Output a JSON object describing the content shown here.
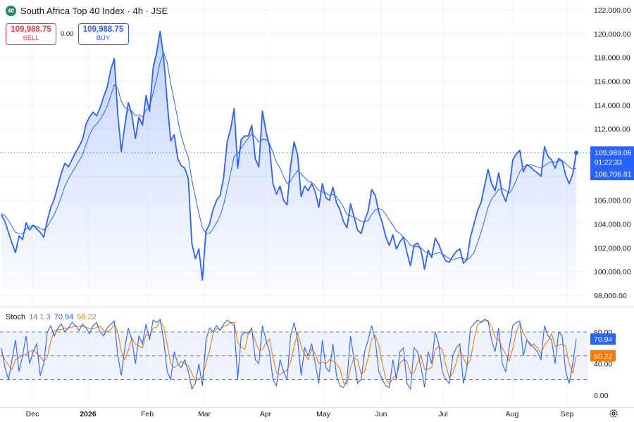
{
  "header": {
    "logo_text": "40",
    "title": "South Africa Top 40 Index · 4h · JSE"
  },
  "trade": {
    "sell_price": "109,988.75",
    "sell_label": "SELL",
    "spread": "0.00",
    "buy_price": "109,988.75",
    "buy_label": "BUY"
  },
  "price_labels": {
    "last_price": "109,989.06",
    "countdown": "01:22:33",
    "ma_value": "108,706.81",
    "last_color": "#2962ff"
  },
  "stoch_header": {
    "name": "Stoch",
    "params": "14 1 3",
    "k_value": "70.94",
    "d_value": "50.22"
  },
  "icons": {
    "settings": "gear-icon"
  },
  "chart_data": [
    {
      "type": "area",
      "series": [
        {
          "name": "",
          "color": "#2962ff",
          "values": [
            104800,
            104200,
            103300,
            102400,
            101600,
            103000,
            102700,
            104100,
            103500,
            103900,
            103600,
            103300,
            102900,
            104300,
            105400,
            106100,
            107200,
            108300,
            109100,
            108800,
            109400,
            110000,
            110500,
            111100,
            112400,
            113000,
            113400,
            113100,
            113800,
            114700,
            115500,
            117000,
            117900,
            113200,
            110100,
            112300,
            114200,
            113200,
            111200,
            113000,
            112300,
            114800,
            113500,
            117100,
            118400,
            120200,
            118000,
            114300,
            111000,
            111500,
            109500,
            108900,
            108700,
            107800,
            102400,
            101100,
            101900,
            99300,
            103400,
            104000,
            105200,
            106000,
            106400,
            107900,
            110900,
            112000,
            113700,
            108700,
            111100,
            111400,
            111400,
            112300,
            109500,
            108800,
            113500,
            111800,
            110500,
            107400,
            106500,
            107200,
            106000,
            105600,
            108900,
            110900,
            109800,
            106300,
            107200,
            106800,
            107400,
            106700,
            105400,
            107400,
            106200,
            106000,
            107100,
            105800,
            105200,
            104200,
            103700,
            105700,
            104600,
            103500,
            103200,
            104300,
            105100,
            106900,
            106400,
            105000,
            104100,
            102900,
            102200,
            103100,
            101900,
            102500,
            102900,
            101600,
            100500,
            102200,
            102400,
            101800,
            100200,
            101800,
            101200,
            102800,
            102300,
            101500,
            100900,
            100800,
            101300,
            101700,
            101900,
            100700,
            101000,
            102900,
            104000,
            105100,
            105800,
            107200,
            108600,
            107400,
            106800,
            108300,
            106600,
            105900,
            107000,
            109400,
            109900,
            110200,
            108400,
            109000,
            108800,
            108500,
            108300,
            108000,
            110500,
            109700,
            109400,
            108700,
            109500,
            109300,
            108100,
            107400,
            108200,
            109989
          ]
        },
        {
          "name": "",
          "color": "#2962ff",
          "values": [
            104900,
            104700,
            104300,
            103800,
            103300,
            103200,
            103200,
            103600,
            103800,
            103900,
            103800,
            103600,
            103500,
            103800,
            104300,
            104800,
            105500,
            106300,
            107200,
            107800,
            108300,
            108800,
            109300,
            109800,
            110700,
            111500,
            112100,
            112400,
            112800,
            113300,
            113900,
            114800,
            115700,
            115400,
            114300,
            113800,
            113600,
            113500,
            113100,
            113200,
            113000,
            113600,
            113800,
            115000,
            116200,
            117600,
            118400,
            117600,
            115800,
            114400,
            112800,
            111400,
            110400,
            109600,
            107700,
            106300,
            104900,
            103700,
            103200,
            103200,
            103600,
            104100,
            104700,
            105600,
            106900,
            108300,
            109700,
            109900,
            110400,
            110800,
            111200,
            111600,
            111300,
            110900,
            111100,
            111100,
            110800,
            110000,
            109200,
            108700,
            108000,
            107400,
            107600,
            108100,
            108500,
            108200,
            107900,
            107600,
            107500,
            107200,
            106800,
            106700,
            106600,
            106400,
            106500,
            106300,
            105900,
            105400,
            104800,
            104700,
            104600,
            104400,
            104200,
            104200,
            104300,
            104800,
            105200,
            105300,
            105200,
            104800,
            104300,
            103900,
            103400,
            103200,
            102900,
            102600,
            102200,
            102100,
            102100,
            102000,
            101700,
            101500,
            101400,
            101500,
            101600,
            101500,
            101300,
            101100,
            101000,
            101100,
            101200,
            101100,
            101000,
            101200,
            101600,
            102400,
            103300,
            104300,
            105400,
            106100,
            106500,
            106900,
            107000,
            106800,
            106600,
            107000,
            107700,
            108400,
            108800,
            108900,
            109000,
            108900,
            108800,
            108700,
            108900,
            109100,
            109200,
            109200,
            109300,
            109300,
            109100,
            108800,
            108600,
            108706.81
          ]
        }
      ],
      "ylim": [
        97500,
        122500
      ],
      "y_ticks": [
        "98,000.00",
        "100,000.00",
        "102,000.00",
        "104,000.00",
        "106,000.00",
        "108,000.00",
        "110,000.00",
        "112,000.00",
        "114,000.00",
        "116,000.00",
        "118,000.00",
        "120,000.00",
        "122,000.00"
      ],
      "x_ticks": [
        "Dec",
        "2026",
        "Feb",
        "Mar",
        "Apr",
        "May",
        "Jun",
        "Jul",
        "Aug",
        "Sep"
      ],
      "grid": true
    },
    {
      "type": "line",
      "series": [
        {
          "name": "",
          "color": "#2962ff",
          "values": [
            60,
            35,
            20,
            45,
            70,
            30,
            50,
            75,
            40,
            55,
            65,
            25,
            40,
            80,
            88,
            75,
            85,
            90,
            80,
            85,
            92,
            88,
            82,
            90,
            85,
            78,
            88,
            92,
            80,
            75,
            85,
            90,
            94,
            50,
            25,
            60,
            85,
            70,
            40,
            75,
            65,
            90,
            70,
            95,
            92,
            96,
            70,
            30,
            20,
            55,
            40,
            35,
            45,
            30,
            8,
            15,
            40,
            12,
            70,
            85,
            80,
            88,
            82,
            90,
            95,
            92,
            88,
            20,
            75,
            80,
            78,
            85,
            45,
            40,
            88,
            70,
            55,
            20,
            12,
            45,
            30,
            20,
            75,
            92,
            70,
            25,
            60,
            50,
            65,
            40,
            15,
            70,
            35,
            30,
            65,
            25,
            12,
            10,
            20,
            75,
            45,
            15,
            20,
            55,
            70,
            88,
            70,
            30,
            20,
            12,
            10,
            45,
            20,
            55,
            60,
            15,
            8,
            60,
            55,
            35,
            10,
            55,
            40,
            80,
            65,
            30,
            20,
            15,
            50,
            60,
            65,
            15,
            35,
            85,
            90,
            95,
            92,
            96,
            94,
            70,
            55,
            85,
            40,
            30,
            60,
            88,
            92,
            94,
            50,
            70,
            65,
            60,
            55,
            45,
            88,
            75,
            70,
            40,
            80,
            75,
            30,
            15,
            40,
            71
          ]
        },
        {
          "name": "",
          "color": "#f57c00",
          "values": [
            55,
            45,
            38,
            33,
            45,
            48,
            50,
            52,
            55,
            57,
            53,
            48,
            43,
            48,
            69,
            81,
            83,
            83,
            85,
            85,
            86,
            88,
            87,
            87,
            86,
            84,
            84,
            86,
            87,
            82,
            80,
            83,
            90,
            80,
            56,
            45,
            57,
            72,
            65,
            62,
            60,
            77,
            75,
            85,
            86,
            94,
            86,
            65,
            40,
            35,
            38,
            43,
            40,
            37,
            28,
            18,
            21,
            22,
            41,
            56,
            78,
            84,
            83,
            87,
            89,
            92,
            92,
            67,
            61,
            58,
            78,
            81,
            69,
            57,
            58,
            66,
            71,
            48,
            29,
            26,
            29,
            32,
            42,
            62,
            79,
            62,
            52,
            45,
            58,
            52,
            40,
            42,
            40,
            45,
            43,
            40,
            34,
            16,
            14,
            35,
            47,
            45,
            27,
            30,
            48,
            71,
            76,
            63,
            40,
            21,
            14,
            22,
            25,
            40,
            45,
            43,
            28,
            28,
            41,
            50,
            33,
            33,
            35,
            58,
            62,
            58,
            38,
            22,
            28,
            42,
            58,
            47,
            38,
            45,
            70,
            90,
            92,
            94,
            94,
            87,
            73,
            70,
            60,
            52,
            43,
            59,
            80,
            91,
            79,
            71,
            62,
            65,
            60,
            53,
            63,
            69,
            78,
            62,
            63,
            65,
            62,
            40,
            28,
            50
          ]
        }
      ],
      "ylim": [
        0,
        100
      ],
      "y_ticks": [
        "0.00",
        "40.00",
        "80.00"
      ],
      "bands": [
        20,
        50,
        80
      ]
    }
  ]
}
